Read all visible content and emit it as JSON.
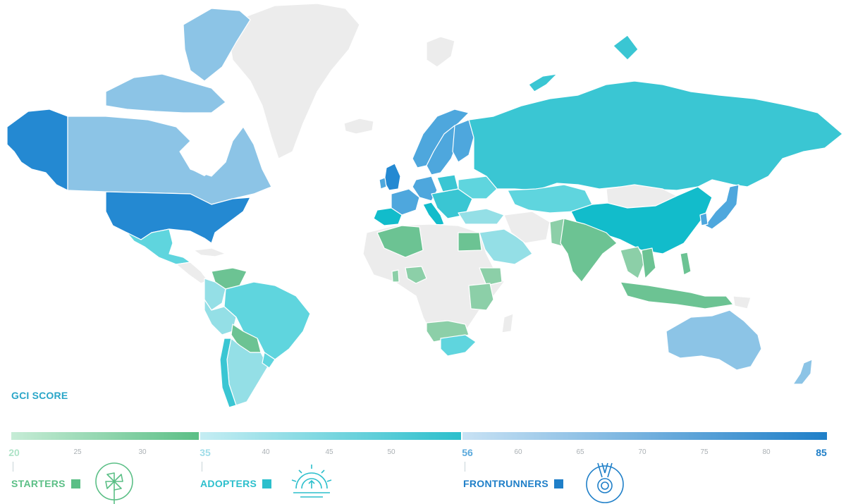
{
  "legend": {
    "title": "GCI SCORE",
    "ticks": [
      {
        "v": "20",
        "big": true,
        "color": "#aee3c7",
        "pos": 20
      },
      {
        "v": "25",
        "big": false,
        "pos": 110
      },
      {
        "v": "30",
        "big": false,
        "pos": 202
      },
      {
        "v": "35",
        "big": true,
        "color": "#9fdde9",
        "pos": 291
      },
      {
        "v": "40",
        "big": false,
        "pos": 377
      },
      {
        "v": "45",
        "big": false,
        "pos": 467
      },
      {
        "v": "50",
        "big": false,
        "pos": 555
      },
      {
        "v": "56",
        "big": true,
        "color": "#5aa9dc",
        "pos": 663
      },
      {
        "v": "60",
        "big": false,
        "pos": 735
      },
      {
        "v": "65",
        "big": false,
        "pos": 823
      },
      {
        "v": "70",
        "big": false,
        "pos": 911
      },
      {
        "v": "75",
        "big": false,
        "pos": 999
      },
      {
        "v": "80",
        "big": false,
        "pos": 1087
      },
      {
        "v": "85",
        "big": true,
        "color": "#1f7fc8",
        "pos": 1165
      }
    ],
    "categories": [
      {
        "label": "STARTERS",
        "color": "#5bbf86",
        "icon": "pinwheel-icon"
      },
      {
        "label": "ADOPTERS",
        "color": "#2cbfcc",
        "icon": "speedometer-icon"
      },
      {
        "label": "FRONTRUNNERS",
        "color": "#1f7fc8",
        "icon": "medal-icon"
      }
    ],
    "gradients": {
      "starters": [
        "#c6ecd6",
        "#5bbf86"
      ],
      "adopters": [
        "#c5edf3",
        "#2cbfcc"
      ],
      "frontrunners": [
        "#c8e2f4",
        "#1f7fc8"
      ]
    }
  },
  "palette": {
    "no_data": "#ececec",
    "starter": "#6cc393",
    "starter_light": "#8ccfa8",
    "adopter": "#5fd5de",
    "adopter_dark": "#3ac6d3",
    "adopter_deep": "#12bccb",
    "adopter_light": "#94dfe6",
    "front_light": "#8cc4e6",
    "front_mid": "#4ea7dd",
    "front_dark": "#2489d2"
  }
}
